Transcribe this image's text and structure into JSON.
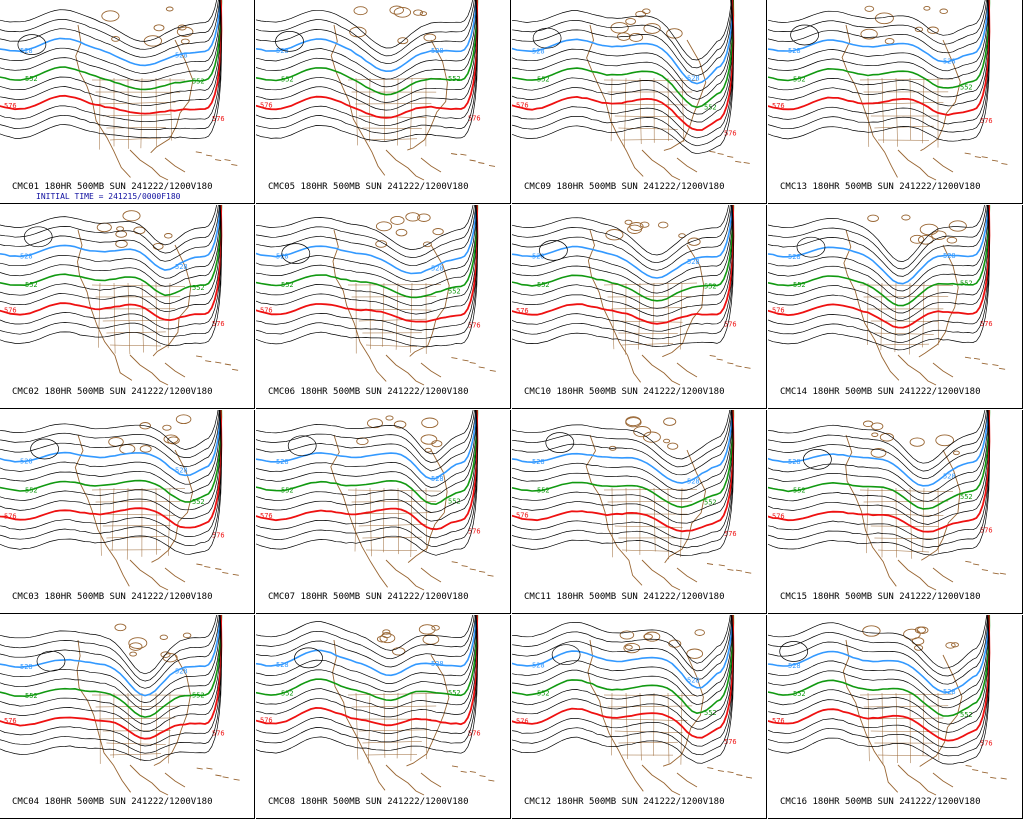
{
  "colors": {
    "contour": "#000000",
    "blue_contour": "#3399ff",
    "green_contour": "#119911",
    "red_contour": "#ee1111",
    "map": "#996633",
    "init_text": "#1010a0"
  },
  "contour_labels": {
    "blue": "528",
    "green": "552",
    "red": "576"
  },
  "initial_time_label": "INITIAL TIME = 241215/0000F180",
  "panels": [
    {
      "caption": "CMC01 180HR 500MB SUN 241222/1200V180"
    },
    {
      "caption": "CMC05 180HR 500MB SUN 241222/1200V180"
    },
    {
      "caption": "CMC09 180HR 500MB SUN 241222/1200V180"
    },
    {
      "caption": "CMC13 180HR 500MB SUN 241222/1200V180"
    },
    {
      "caption": "CMC02 180HR 500MB SUN 241222/1200V180"
    },
    {
      "caption": "CMC06 180HR 500MB SUN 241222/1200V180"
    },
    {
      "caption": "CMC10 180HR 500MB SUN 241222/1200V180"
    },
    {
      "caption": "CMC14 180HR 500MB SUN 241222/1200V180"
    },
    {
      "caption": "CMC03 180HR 500MB SUN 241222/1200V180"
    },
    {
      "caption": "CMC07 180HR 500MB SUN 241222/1200V180"
    },
    {
      "caption": "CMC11 180HR 500MB SUN 241222/1200V180"
    },
    {
      "caption": "CMC15 180HR 500MB SUN 241222/1200V180"
    },
    {
      "caption": "CMC04 180HR 500MB SUN 241222/1200V180"
    },
    {
      "caption": "CMC08 180HR 500MB SUN 241222/1200V180"
    },
    {
      "caption": "CMC12 180HR 500MB SUN 241222/1200V180"
    },
    {
      "caption": "CMC16 180HR 500MB SUN 241222/1200V180"
    }
  ]
}
